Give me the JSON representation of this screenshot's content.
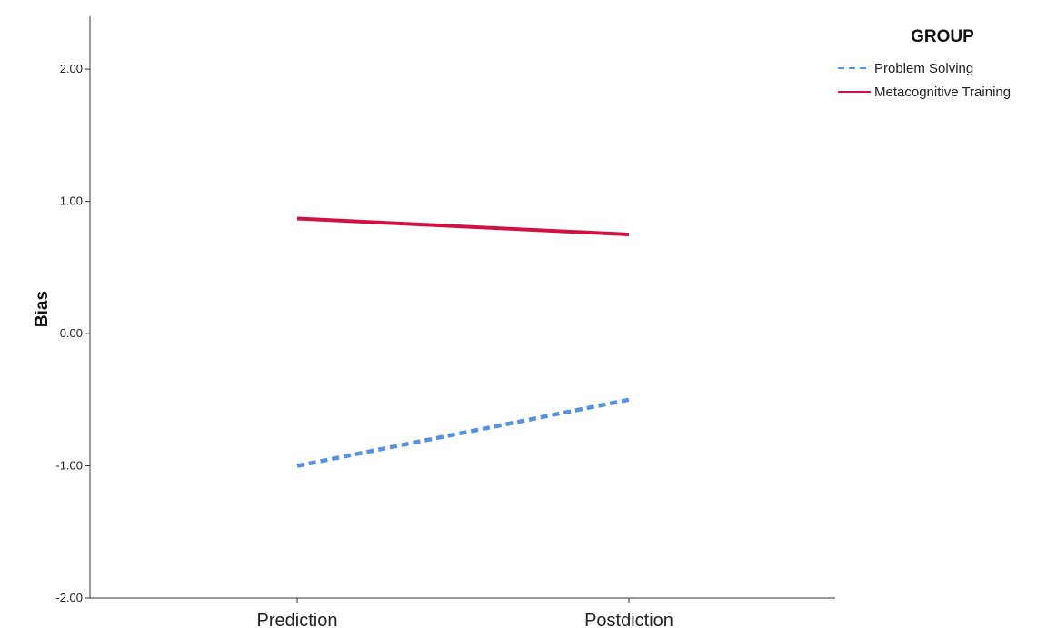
{
  "chart_data": {
    "type": "line",
    "title": "",
    "xlabel": "",
    "ylabel": "Bias",
    "categories": [
      "Prediction",
      "Postdiction"
    ],
    "ylim": [
      -2.0,
      2.4
    ],
    "yticks": [
      "2.00",
      "1.00",
      "0.00",
      "-1.00",
      "-2.00"
    ],
    "ytick_values": [
      2.0,
      1.0,
      0.0,
      -1.0,
      -2.0
    ],
    "grid": false,
    "legend": {
      "title": "GROUP",
      "position": "top-right"
    },
    "series": [
      {
        "name": "Problem Solving",
        "values": [
          -1.0,
          -0.5
        ],
        "color": "#5592e0",
        "style": "dashed"
      },
      {
        "name": "Metacognitive Training",
        "values": [
          0.87,
          0.75
        ],
        "color": "#d11141",
        "style": "solid"
      }
    ]
  }
}
